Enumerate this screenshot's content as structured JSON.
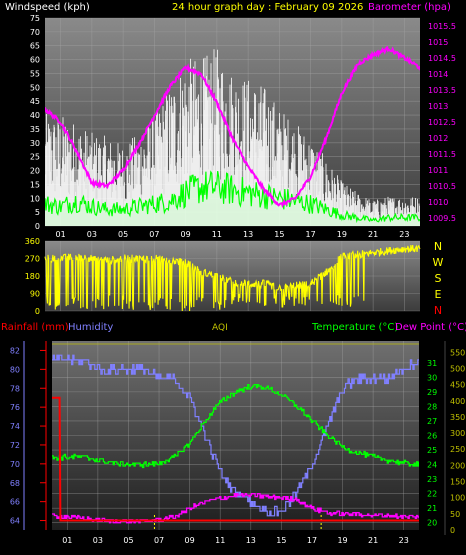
{
  "header": {
    "wind_label": "Windspeed (kph)",
    "title": "24 hour graph day : February 09 2026",
    "baro_label": "Barometer (hpa)"
  },
  "compass": [
    "N",
    "W",
    "S",
    "E",
    "N"
  ],
  "bottom_header": {
    "rain_label": "Rainfall (mm)",
    "hum_label": "Humidity",
    "aqi_label": "AQI",
    "temp_label": "Temperature (°C)",
    "dew_label": "Dew Point (°C)"
  },
  "colors": {
    "wind_title": "#ffffff",
    "title": "#ffff00",
    "baro": "#ff00ff",
    "gust": "#ffffff",
    "avg_wind": "#00ff00",
    "direction": "#ffff00",
    "rain": "#ff0000",
    "humidity": "#8080ff",
    "temperature": "#00ff00",
    "dewpoint": "#ff00ff",
    "aqi": "#c0c000"
  },
  "chart_data": [
    {
      "type": "line",
      "name": "wind-barometer",
      "x_ticks": [
        "01",
        "03",
        "05",
        "07",
        "09",
        "11",
        "13",
        "15",
        "17",
        "19",
        "21",
        "23"
      ],
      "left_axis": {
        "label": "Windspeed (kph)",
        "ylim": [
          0,
          75
        ],
        "ticks": [
          0,
          5,
          10,
          15,
          20,
          25,
          30,
          35,
          40,
          45,
          50,
          55,
          60,
          65,
          70,
          75
        ]
      },
      "right_axis": {
        "label": "Barometer (hpa)",
        "ylim": [
          1009.25,
          1015.75
        ],
        "ticks": [
          "1009.5",
          "1010",
          "1010.5",
          "1011",
          "1011.5",
          "1012",
          "1012.5",
          "1013",
          "1013.5",
          "1014",
          "1014.5",
          "1015",
          "1015.5"
        ]
      },
      "series": [
        {
          "name": "Barometer (hpa)",
          "axis": "right",
          "x": [
            0,
            1,
            2,
            3,
            4,
            5,
            6,
            7,
            8,
            9,
            10,
            11,
            12,
            13,
            14,
            15,
            16,
            17,
            18,
            19,
            20,
            21,
            22,
            23,
            24
          ],
          "values": [
            1012.9,
            1012.5,
            1011.6,
            1010.6,
            1010.5,
            1011.0,
            1011.8,
            1012.7,
            1013.6,
            1014.2,
            1014.0,
            1013.1,
            1012.0,
            1011.1,
            1010.4,
            1009.9,
            1010.1,
            1010.8,
            1012.0,
            1013.4,
            1014.3,
            1014.6,
            1014.8,
            1014.5,
            1014.2
          ]
        },
        {
          "name": "Windspeed (kph)",
          "axis": "left",
          "x": [
            0,
            1,
            2,
            3,
            4,
            5,
            6,
            7,
            8,
            9,
            10,
            11,
            12,
            13,
            14,
            15,
            16,
            17,
            18,
            19,
            20,
            21,
            22,
            23,
            24
          ],
          "values": [
            8,
            7,
            9,
            7,
            6,
            6,
            7,
            8,
            9,
            12,
            14,
            14,
            13,
            12,
            11,
            10,
            9,
            8,
            6,
            4,
            3,
            2,
            3,
            3,
            3
          ]
        },
        {
          "name": "Gust (kph)",
          "axis": "left",
          "x": [
            0,
            1,
            2,
            3,
            4,
            5,
            6,
            7,
            8,
            9,
            10,
            11,
            12,
            13,
            14,
            15,
            16,
            17,
            18,
            19,
            20,
            21,
            22,
            23,
            24
          ],
          "values": [
            30,
            30,
            28,
            25,
            24,
            22,
            25,
            30,
            38,
            45,
            45,
            48,
            42,
            40,
            38,
            32,
            28,
            24,
            18,
            12,
            9,
            7,
            8,
            8,
            8
          ]
        }
      ]
    },
    {
      "type": "scatter",
      "name": "wind-direction",
      "ylim": [
        0,
        360
      ],
      "y_ticks": [
        0,
        90,
        180,
        270,
        360
      ],
      "x": [
        0,
        1,
        2,
        3,
        4,
        5,
        6,
        7,
        8,
        9,
        10,
        11,
        12,
        13,
        14,
        15,
        16,
        17,
        18,
        19,
        20,
        21,
        22,
        23,
        24
      ],
      "values": [
        270,
        270,
        280,
        270,
        260,
        270,
        270,
        270,
        260,
        250,
        200,
        180,
        150,
        140,
        140,
        120,
        130,
        140,
        200,
        280,
        290,
        300,
        310,
        320,
        320
      ]
    },
    {
      "type": "line",
      "name": "temperature-humidity",
      "x_ticks": [
        "01",
        "03",
        "05",
        "07",
        "09",
        "11",
        "13",
        "15",
        "17",
        "19",
        "21",
        "23"
      ],
      "left_axis": {
        "label": "Humidity",
        "ylim": [
          63,
          83
        ],
        "ticks": [
          64,
          66,
          68,
          70,
          72,
          74,
          76,
          78,
          80,
          82
        ]
      },
      "right_axis_temp": {
        "label": "Temperature (°C)",
        "ylim": [
          19.5,
          32.5
        ],
        "ticks": [
          20,
          21,
          22,
          23,
          24,
          25,
          26,
          27,
          28,
          29,
          30,
          31
        ]
      },
      "right_axis_aqi": {
        "label": "AQI",
        "ylim": [
          0,
          585
        ],
        "ticks": [
          0,
          50,
          100,
          150,
          200,
          250,
          300,
          350,
          400,
          450,
          500,
          550
        ]
      },
      "series": [
        {
          "name": "Humidity",
          "x": [
            0,
            1,
            2,
            3,
            4,
            5,
            6,
            7,
            8,
            9,
            10,
            11,
            12,
            13,
            14,
            15,
            16,
            17,
            18,
            19,
            20,
            21,
            22,
            23,
            24
          ],
          "values": [
            81,
            81,
            81,
            80,
            80,
            80,
            80,
            79,
            79,
            77,
            73,
            69,
            67,
            66,
            65,
            65,
            67,
            70,
            74,
            78,
            79,
            79,
            79,
            80,
            81
          ]
        },
        {
          "name": "Temperature (°C)",
          "x": [
            0,
            1,
            2,
            3,
            4,
            5,
            6,
            7,
            8,
            9,
            10,
            11,
            12,
            13,
            14,
            15,
            16,
            17,
            18,
            19,
            20,
            21,
            22,
            23,
            24
          ],
          "values": [
            24.5,
            24.5,
            24.5,
            24.3,
            24.1,
            24.0,
            24.0,
            24.1,
            24.5,
            25.5,
            27.0,
            28.3,
            29.0,
            29.4,
            29.3,
            28.8,
            28.0,
            27.0,
            26.0,
            25.2,
            24.8,
            24.5,
            24.3,
            24.1,
            24.0
          ]
        },
        {
          "name": "Dew Point (°C)",
          "x": [
            0,
            1,
            2,
            3,
            4,
            5,
            6,
            7,
            8,
            9,
            10,
            11,
            12,
            13,
            14,
            15,
            16,
            17,
            18,
            19,
            20,
            21,
            22,
            23,
            24
          ],
          "values": [
            20.5,
            20.4,
            20.3,
            20.2,
            20.1,
            20.1,
            20.1,
            20.2,
            20.4,
            21.0,
            21.4,
            21.7,
            21.9,
            21.9,
            21.8,
            21.7,
            21.6,
            21.0,
            20.7,
            20.6,
            20.6,
            20.5,
            20.5,
            20.4,
            20.4
          ]
        },
        {
          "name": "Rainfall (mm)",
          "x": [
            0,
            0.5,
            0.55,
            6,
            24
          ],
          "values": [
            77,
            77,
            64,
            64,
            64
          ]
        }
      ]
    }
  ]
}
